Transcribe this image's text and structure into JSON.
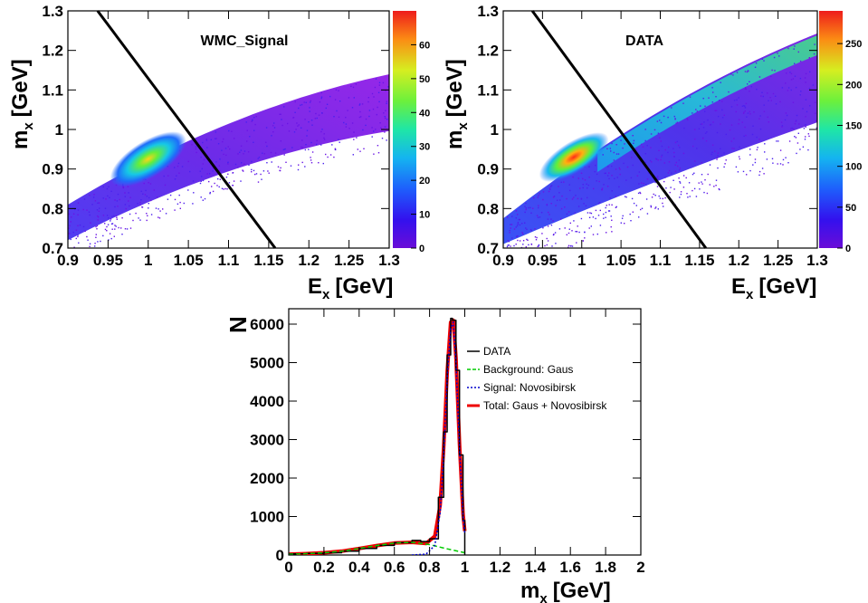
{
  "chart_data": [
    {
      "type": "heatmap",
      "title": "WMC_Signal",
      "xlabel": "E",
      "xlabel_sub": "x",
      "xlabel_unit": "[GeV]",
      "ylabel": "m",
      "ylabel_sub": "x",
      "ylabel_unit": "[GeV]",
      "xlim": [
        0.9,
        1.3
      ],
      "ylim": [
        0.7,
        1.3
      ],
      "xticks": [
        0.9,
        0.95,
        1,
        1.05,
        1.1,
        1.15,
        1.2,
        1.25,
        1.3
      ],
      "xtick_labels": [
        "0.9",
        "0.95",
        "1",
        "1.05",
        "1.1",
        "1.15",
        "1.2",
        "1.25",
        "1.3"
      ],
      "yticks": [
        0.7,
        0.8,
        0.9,
        1.0,
        1.1,
        1.2,
        1.3
      ],
      "ytick_labels": [
        "0.7",
        "0.8",
        "0.9",
        "1",
        "1.1",
        "1.2",
        "1.3"
      ],
      "zlim": [
        0,
        70
      ],
      "zticks": [
        0,
        10,
        20,
        30,
        40,
        50,
        60
      ],
      "ztick_labels": [
        "0",
        "10",
        "20",
        "30",
        "40",
        "50",
        "60"
      ],
      "peak": {
        "x": 1.0,
        "y": 0.925
      },
      "cut_line": {
        "x1": 0.937,
        "y1": 1.3,
        "x2": 1.158,
        "y2": 0.7
      }
    },
    {
      "type": "heatmap",
      "title": "DATA",
      "xlabel": "E",
      "xlabel_sub": "x",
      "xlabel_unit": "[GeV]",
      "ylabel": "m",
      "ylabel_sub": "x",
      "ylabel_unit": "[GeV]",
      "xlim": [
        0.9,
        1.3
      ],
      "ylim": [
        0.7,
        1.3
      ],
      "xticks": [
        0.9,
        0.95,
        1,
        1.05,
        1.1,
        1.15,
        1.2,
        1.25,
        1.3
      ],
      "xtick_labels": [
        "0.9",
        "0.95",
        "1",
        "1.05",
        "1.1",
        "1.15",
        "1.2",
        "1.25",
        "1.3"
      ],
      "yticks": [
        0.7,
        0.8,
        0.9,
        1.0,
        1.1,
        1.2,
        1.3
      ],
      "ytick_labels": [
        "0.7",
        "0.8",
        "0.9",
        "1",
        "1.1",
        "1.2",
        "1.3"
      ],
      "zlim": [
        0,
        290
      ],
      "zticks": [
        0,
        50,
        100,
        150,
        200,
        250
      ],
      "ztick_labels": [
        "0",
        "50",
        "100",
        "150",
        "200",
        "250"
      ],
      "peak": {
        "x": 0.99,
        "y": 0.93
      },
      "cut_line": {
        "x1": 0.937,
        "y1": 1.3,
        "x2": 1.158,
        "y2": 0.7
      }
    },
    {
      "type": "line",
      "xlabel": "m",
      "xlabel_sub": "x",
      "xlabel_unit": "[GeV]",
      "ylabel": "N",
      "xlim": [
        0,
        2
      ],
      "ylim": [
        0,
        6400
      ],
      "xticks": [
        0,
        0.2,
        0.4,
        0.6,
        0.8,
        1,
        1.2,
        1.4,
        1.6,
        1.8,
        2
      ],
      "xtick_labels": [
        "0",
        "0.2",
        "0.4",
        "0.6",
        "0.8",
        "1",
        "1.2",
        "1.4",
        "1.6",
        "1.8",
        "2"
      ],
      "yticks": [
        0,
        1000,
        2000,
        3000,
        4000,
        5000,
        6000
      ],
      "ytick_labels": [
        "0",
        "1000",
        "2000",
        "3000",
        "4000",
        "5000",
        "6000"
      ],
      "legend": [
        {
          "label": "DATA",
          "color": "#000000",
          "style": "solid"
        },
        {
          "label": "Background: Gaus",
          "color": "#00cc00",
          "style": "dashed"
        },
        {
          "label": "Signal: Novosibirsk",
          "color": "#0000cc",
          "style": "dotted"
        },
        {
          "label": "Total: Gaus + Novosibirsk",
          "color": "#ee0000",
          "style": "thick"
        }
      ],
      "series": [
        {
          "name": "DATA",
          "x": [
            0.0,
            0.1,
            0.2,
            0.3,
            0.4,
            0.5,
            0.6,
            0.7,
            0.75,
            0.8,
            0.85,
            0.88,
            0.9,
            0.92,
            0.93,
            0.95,
            0.97,
            0.99,
            1.0
          ],
          "y": [
            30,
            40,
            60,
            100,
            170,
            250,
            320,
            380,
            350,
            420,
            1500,
            3200,
            5200,
            6150,
            6100,
            4800,
            2600,
            900,
            0
          ]
        },
        {
          "name": "Background: Gaus",
          "x": [
            0.0,
            0.1,
            0.2,
            0.3,
            0.4,
            0.5,
            0.6,
            0.7,
            0.8,
            0.9,
            1.0
          ],
          "y": [
            20,
            35,
            60,
            100,
            170,
            245,
            310,
            330,
            270,
            160,
            60
          ]
        },
        {
          "name": "Signal: Novosibirsk",
          "x": [
            0.7,
            0.78,
            0.83,
            0.86,
            0.88,
            0.9,
            0.92,
            0.935,
            0.95,
            0.97,
            0.99,
            1.0
          ],
          "y": [
            0,
            20,
            250,
            1100,
            2600,
            4600,
            5900,
            6050,
            5000,
            2800,
            1000,
            560
          ]
        },
        {
          "name": "Total: Gaus + Novosibirsk",
          "x": [
            0.0,
            0.1,
            0.2,
            0.3,
            0.4,
            0.5,
            0.6,
            0.7,
            0.78,
            0.83,
            0.86,
            0.88,
            0.9,
            0.92,
            0.935,
            0.95,
            0.97,
            0.99,
            1.0
          ],
          "y": [
            20,
            35,
            60,
            100,
            170,
            245,
            310,
            330,
            300,
            490,
            1300,
            2800,
            4760,
            6050,
            6100,
            5120,
            2880,
            1060,
            620
          ]
        }
      ]
    }
  ]
}
